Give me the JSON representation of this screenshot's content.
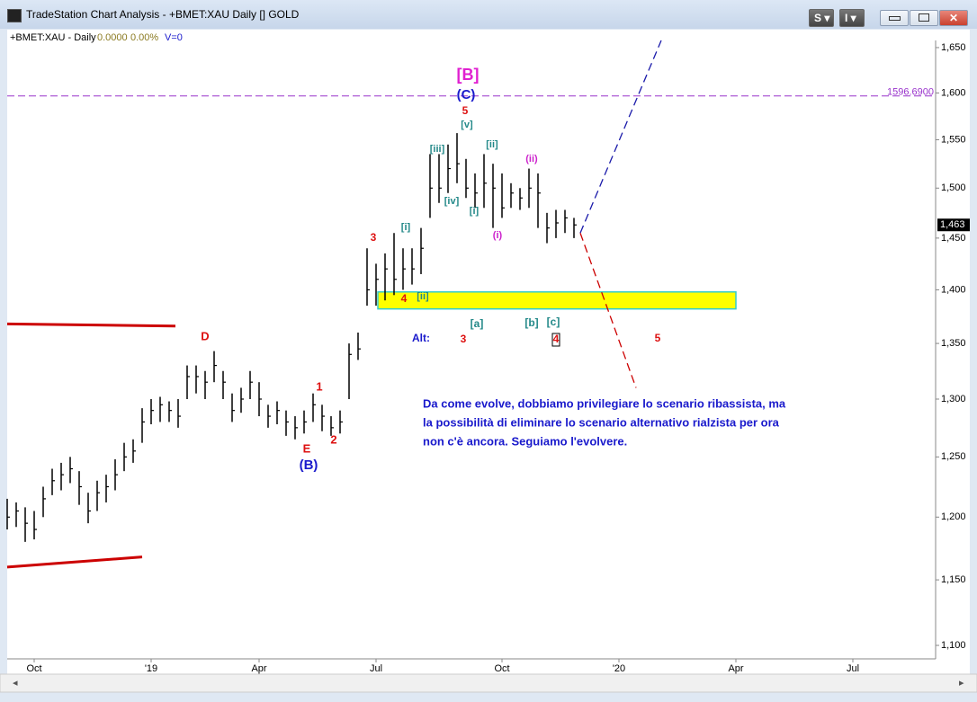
{
  "window_title": "TradeStation Chart Analysis - +BMET:XAU Daily [] GOLD",
  "toolbar_buttons": [
    "S",
    "I"
  ],
  "chart_data": {
    "type": "ohlc",
    "symbol_label": "+BMET:XAU - Daily",
    "net_change": "0.0000",
    "pct_change": "0.00%",
    "volume": "V=0",
    "log_scale": true,
    "color": "#000000",
    "categories": [
      null,
      null,
      null,
      "Oct",
      null,
      null,
      null,
      null,
      null,
      null,
      null,
      null,
      null,
      null,
      null,
      null,
      "'19",
      null,
      null,
      null,
      null,
      null,
      null,
      null,
      null,
      null,
      null,
      null,
      "Apr",
      null,
      null,
      null,
      null,
      null,
      null,
      null,
      null,
      null,
      null,
      null,
      null,
      "Jul",
      null,
      null,
      null,
      null,
      null,
      null,
      null,
      null,
      null,
      null,
      null,
      null,
      null,
      "Oct",
      null,
      null,
      null,
      null,
      null,
      null,
      null,
      null,
      null,
      null,
      null,
      null,
      "'20",
      null,
      null,
      null,
      null,
      null,
      null,
      null,
      null,
      null,
      null,
      null,
      null,
      "Apr",
      null,
      null,
      null,
      null,
      null,
      null,
      null,
      null,
      null,
      null,
      null,
      null,
      "Jul",
      null,
      null,
      null,
      null,
      null,
      null,
      null,
      null,
      null
    ],
    "high": [
      1215,
      1212,
      1208,
      1205,
      1225,
      1240,
      1245,
      1250,
      1238,
      1220,
      1230,
      1235,
      1248,
      1262,
      1265,
      1292,
      1300,
      1302,
      1298,
      1300,
      1330,
      1330,
      1325,
      1343,
      1325,
      1305,
      1310,
      1325,
      1315,
      1295,
      1298,
      1290,
      1285,
      1290,
      1305,
      1295,
      1285,
      1290,
      1350,
      1360,
      1440,
      1425,
      1435,
      1455,
      1440,
      1440,
      1460,
      1535,
      1535,
      1545,
      1557,
      1530,
      1515,
      1535,
      1525,
      1515,
      1505,
      1500,
      1520,
      1515,
      1475,
      1478,
      1478,
      1470,
      null,
      null,
      null,
      null,
      null,
      null,
      null,
      null,
      null,
      null,
      null,
      null,
      null,
      null,
      null,
      null,
      null,
      null,
      null,
      null,
      null,
      null,
      null,
      null,
      null,
      null,
      null,
      null,
      null,
      null,
      null,
      null,
      null,
      null,
      null,
      null,
      null,
      null,
      null,
      null
    ],
    "low": [
      1190,
      1192,
      1180,
      1182,
      1200,
      1218,
      1222,
      1228,
      1210,
      1195,
      1205,
      1212,
      1222,
      1238,
      1245,
      1262,
      1278,
      1280,
      1280,
      1275,
      1300,
      1305,
      1300,
      1315,
      1300,
      1280,
      1288,
      1300,
      1285,
      1275,
      1278,
      1268,
      1265,
      1270,
      1280,
      1272,
      1268,
      1270,
      1300,
      1335,
      1385,
      1385,
      1390,
      1395,
      1400,
      1405,
      1415,
      1470,
      1485,
      1495,
      1505,
      1490,
      1480,
      1480,
      1460,
      1470,
      1480,
      1478,
      1480,
      1460,
      1445,
      1450,
      1455,
      1450,
      null,
      null,
      null,
      null,
      null,
      null,
      null,
      null,
      null,
      null,
      null,
      null,
      null,
      null,
      null,
      null,
      null,
      null,
      null,
      null,
      null,
      null,
      null,
      null,
      null,
      null,
      null,
      null,
      null,
      null,
      null,
      null,
      null,
      null,
      null,
      null,
      null,
      null,
      null,
      null
    ],
    "close": [
      1200,
      1205,
      1195,
      1190,
      1215,
      1230,
      1235,
      1240,
      1225,
      1205,
      1220,
      1225,
      1235,
      1250,
      1255,
      1280,
      1290,
      1295,
      1290,
      1285,
      1320,
      1320,
      1315,
      1330,
      1315,
      1290,
      1300,
      1315,
      1300,
      1285,
      1290,
      1280,
      1275,
      1280,
      1295,
      1285,
      1275,
      1280,
      1340,
      1345,
      1400,
      1410,
      1420,
      1410,
      1420,
      1420,
      1440,
      1500,
      1500,
      1520,
      1525,
      1500,
      1495,
      1505,
      1500,
      1480,
      1495,
      1490,
      1500,
      1495,
      1460,
      1465,
      1470,
      1463,
      null,
      null,
      null,
      null,
      null,
      null,
      null,
      null,
      null,
      null,
      null,
      null,
      null,
      null,
      null,
      null,
      null,
      null,
      null,
      null,
      null,
      null,
      null,
      null,
      null,
      null,
      null,
      null,
      null,
      null,
      null,
      null,
      null,
      null,
      null,
      null,
      null,
      null,
      null,
      null
    ],
    "ylim": [
      1090,
      1658
    ],
    "yticks": [
      {
        "value": 1100,
        "label": "1,100"
      },
      {
        "value": 1150,
        "label": "1,150"
      },
      {
        "value": 1200,
        "label": "1,200"
      },
      {
        "value": 1250,
        "label": "1,250"
      },
      {
        "value": 1300,
        "label": "1,300"
      },
      {
        "value": 1350,
        "label": "1,350"
      },
      {
        "value": 1400,
        "label": "1,400"
      },
      {
        "value": 1450,
        "label": "1,450"
      },
      {
        "value": 1500,
        "label": "1,500"
      },
      {
        "value": 1550,
        "label": "1,550"
      },
      {
        "value": 1600,
        "label": "1,600"
      },
      {
        "value": 1650,
        "label": "1,650"
      }
    ],
    "last_price": {
      "value": 1463,
      "label": "1,463"
    },
    "hline": {
      "value": 1596.69,
      "label": "1596.6900",
      "color": "#9933cc"
    },
    "zone": {
      "low": 1382,
      "high": 1398,
      "color": "#ffff00",
      "border": "#33cccc"
    },
    "trendlines": [
      {
        "values": [
          1368,
          1366
        ],
        "color": "#cc0000",
        "dashed": false
      },
      {
        "values": [
          1160,
          1168
        ],
        "color": "#cc0000",
        "dashed": false
      },
      {
        "values": [
          1455,
          1658
        ],
        "color": "#1a1aaa",
        "dashed": true
      },
      {
        "values": [
          1455,
          1310
        ],
        "color": "#cc0000",
        "dashed": true
      }
    ],
    "annotations": [
      {
        "text": "[B]",
        "color": "#e020d0"
      },
      {
        "text": "(C)",
        "color": "#1a1acc"
      },
      {
        "text": "5",
        "color": "#dd1111"
      },
      {
        "text": "[v]",
        "color": "#228888"
      },
      {
        "text": "[iii]",
        "color": "#228888"
      },
      {
        "text": "[ii]",
        "color": "#228888"
      },
      {
        "text": "(ii)",
        "color": "#cc22cc"
      },
      {
        "text": "[iv]",
        "color": "#228888"
      },
      {
        "text": "[i]",
        "color": "#228888"
      },
      {
        "text": "(i)",
        "color": "#cc22cc"
      },
      {
        "text": "[i]",
        "color": "#228888"
      },
      {
        "text": "3",
        "color": "#dd1111"
      },
      {
        "text": "4",
        "color": "#dd1111"
      },
      {
        "text": "[ii]",
        "color": "#228888"
      },
      {
        "text": "[a]",
        "color": "#228888"
      },
      {
        "text": "[b]",
        "color": "#228888"
      },
      {
        "text": "[c]",
        "color": "#228888"
      },
      {
        "text": "Alt:",
        "color": "#1a1acc"
      },
      {
        "text": "3",
        "color": "#dd1111"
      },
      {
        "text": "4",
        "color": "#dd1111"
      },
      {
        "text": "5",
        "color": "#dd1111"
      },
      {
        "text": "D",
        "color": "#dd1111"
      },
      {
        "text": "1",
        "color": "#dd1111"
      },
      {
        "text": "2",
        "color": "#dd1111"
      },
      {
        "text": "E",
        "color": "#dd1111"
      },
      {
        "text": "(B)",
        "color": "#1a1acc"
      }
    ],
    "comment": [
      "Da come evolve, dobbiamo privilegiare lo scenario ribassista, ma",
      "la possibilità di eliminare lo scenario alternativo rialzista per ora",
      "non c'è ancora.  Seguiamo l'evolvere."
    ]
  }
}
